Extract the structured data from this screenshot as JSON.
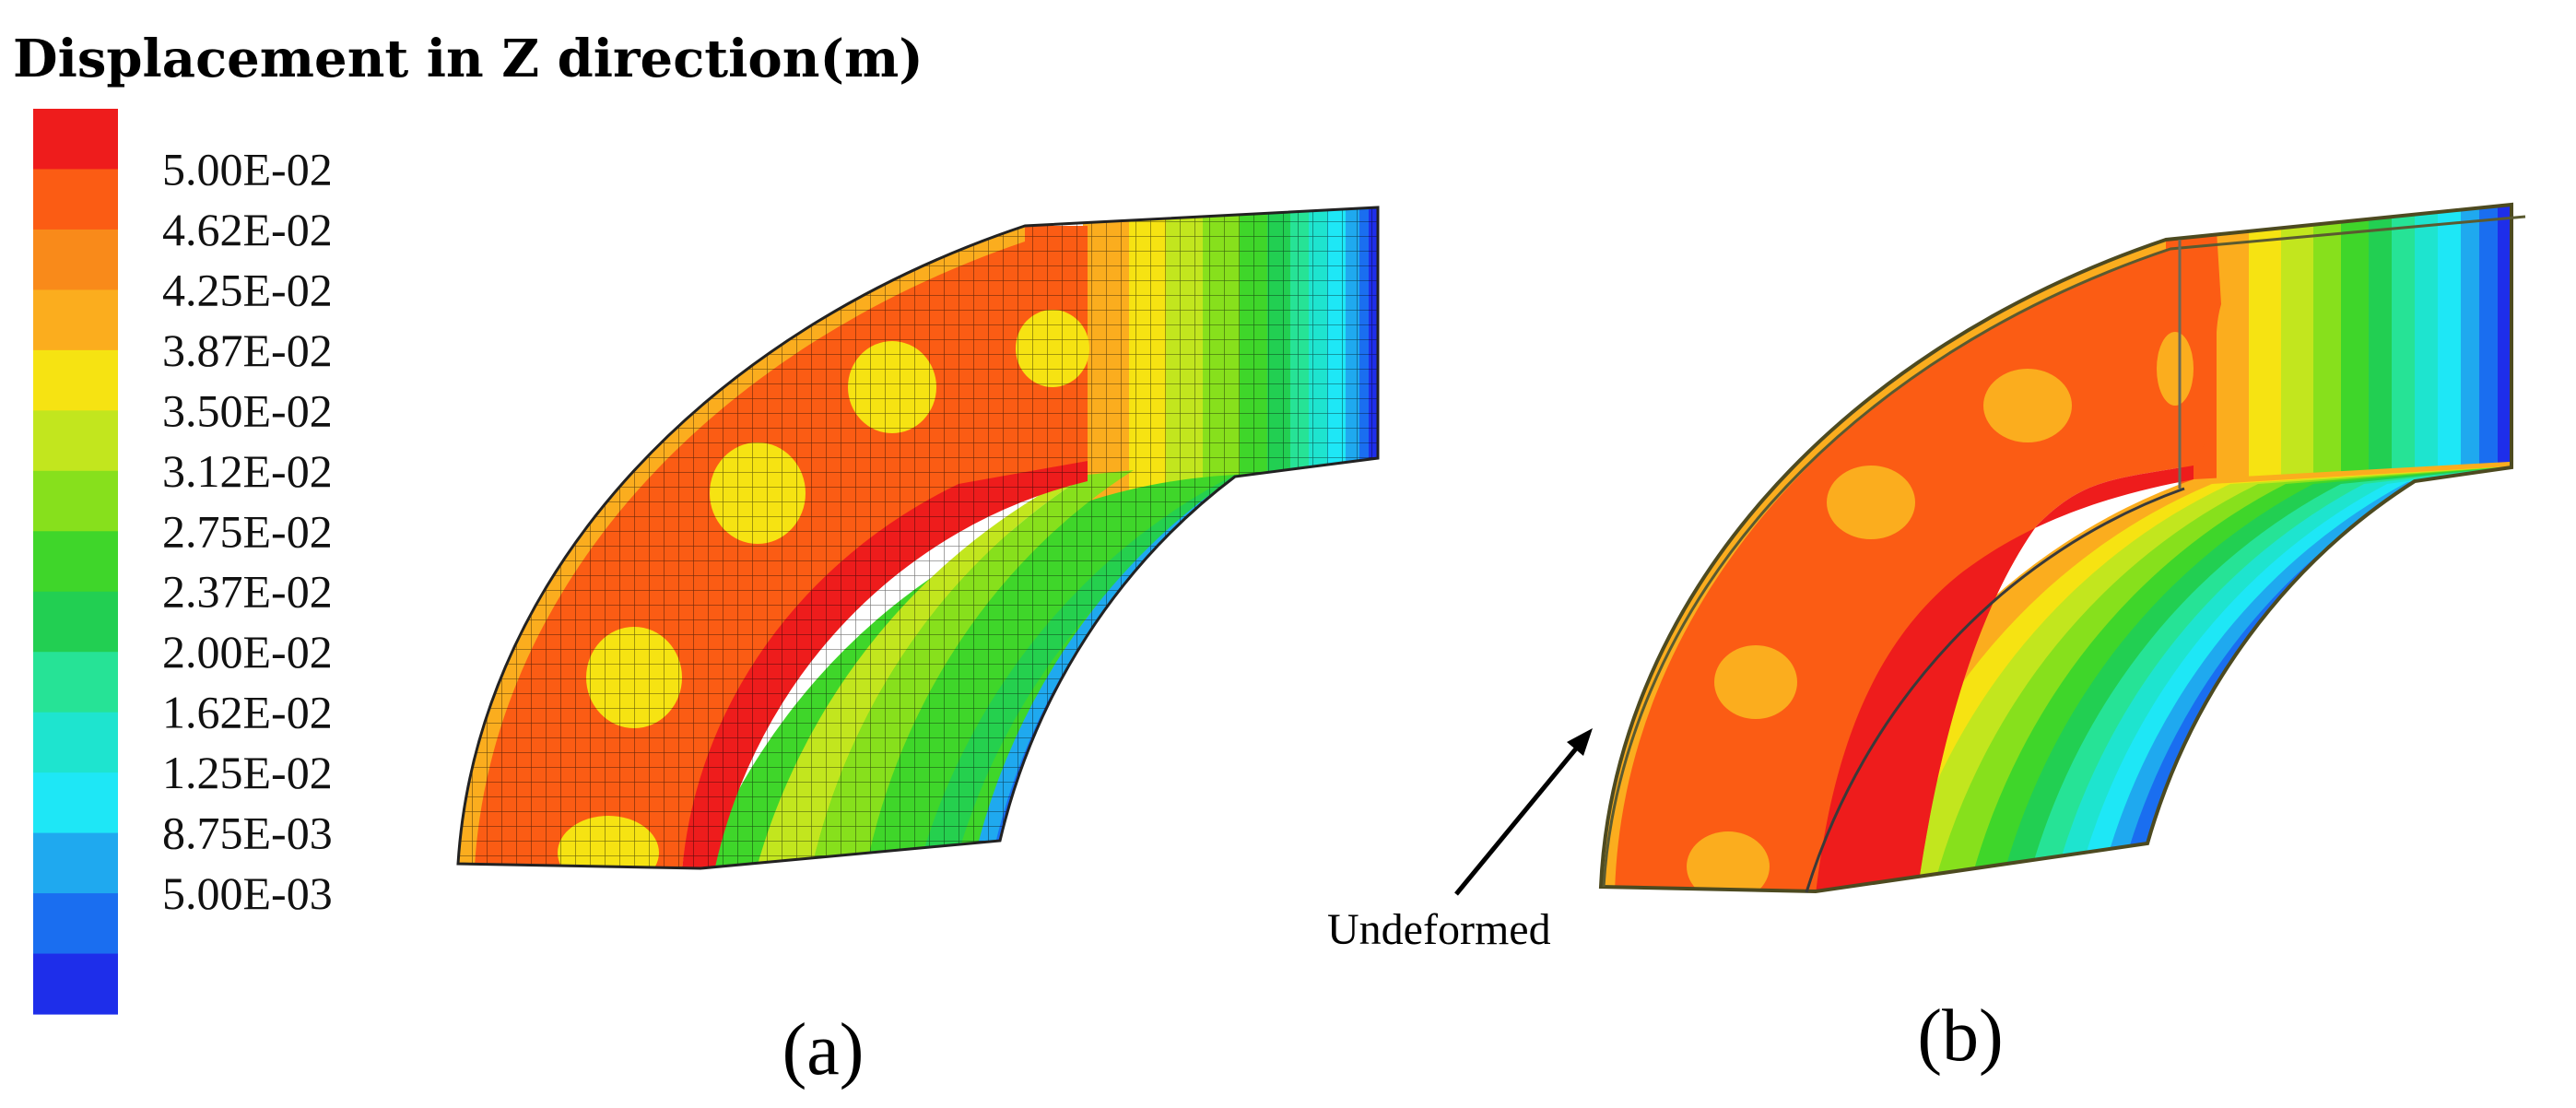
{
  "legend": {
    "title": "Displacement in Z direction(m)",
    "labels": [
      "5.00E-02",
      "4.62E-02",
      "4.25E-02",
      "3.87E-02",
      "3.50E-02",
      "3.12E-02",
      "2.75E-02",
      "2.37E-02",
      "2.00E-02",
      "1.62E-02",
      "1.25E-02",
      "8.75E-03",
      "5.00E-03"
    ],
    "colors": [
      "#ee1c1c",
      "#fb5c14",
      "#f98a1a",
      "#fbad1e",
      "#f6e312",
      "#c2e61e",
      "#87e01c",
      "#3fd62a",
      "#22cf52",
      "#26e396",
      "#1ee4cf",
      "#1ee7f6",
      "#1fa9ef",
      "#1a6ef0",
      "#1e2eea"
    ]
  },
  "panels": [
    {
      "caption": "(a)"
    },
    {
      "caption": "(b)",
      "annotation": "Undeformed"
    }
  ]
}
